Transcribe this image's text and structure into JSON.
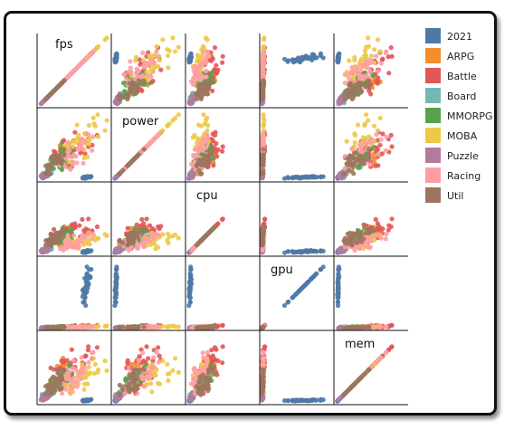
{
  "chart_data": {
    "type": "scatter",
    "subtype": "scatter-matrix",
    "variables": [
      "fps",
      "power",
      "cpu",
      "gpu",
      "mem"
    ],
    "legend_position": "right",
    "grid": false,
    "categories": [
      {
        "name": "2021",
        "color": "#4e79a7"
      },
      {
        "name": "ARPG",
        "color": "#f28e2b"
      },
      {
        "name": "Battle",
        "color": "#e15759"
      },
      {
        "name": "Board",
        "color": "#76b7b2"
      },
      {
        "name": "MMORPG",
        "color": "#59a14f"
      },
      {
        "name": "MOBA",
        "color": "#edc948"
      },
      {
        "name": "Puzzle",
        "color": "#b07aa1"
      },
      {
        "name": "Racing",
        "color": "#ff9da7"
      },
      {
        "name": "Util",
        "color": "#9c755f"
      }
    ],
    "distributions": {
      "2021": {
        "fps": [
          0.6,
          0.75
        ],
        "power": [
          0.02,
          0.06
        ],
        "cpu": [
          0.02,
          0.06
        ],
        "gpu": [
          0.25,
          0.95
        ],
        "mem": [
          0.02,
          0.05
        ]
      },
      "ARPG": {
        "fps": [
          0.05,
          0.55
        ],
        "power": [
          0.05,
          0.55
        ],
        "cpu": [
          0.05,
          0.45
        ],
        "gpu": [
          0.0,
          0.04
        ],
        "mem": [
          0.05,
          0.7
        ]
      },
      "Battle": {
        "fps": [
          0.1,
          0.85
        ],
        "power": [
          0.1,
          0.75
        ],
        "cpu": [
          0.1,
          0.55
        ],
        "gpu": [
          0.0,
          0.05
        ],
        "mem": [
          0.1,
          0.95
        ]
      },
      "Board": {
        "fps": [
          0.02,
          0.2
        ],
        "power": [
          0.02,
          0.15
        ],
        "cpu": [
          0.02,
          0.12
        ],
        "gpu": [
          0.0,
          0.03
        ],
        "mem": [
          0.02,
          0.2
        ]
      },
      "MMORPG": {
        "fps": [
          0.05,
          0.6
        ],
        "power": [
          0.05,
          0.55
        ],
        "cpu": [
          0.05,
          0.4
        ],
        "gpu": [
          0.0,
          0.04
        ],
        "mem": [
          0.05,
          0.6
        ]
      },
      "MOBA": {
        "fps": [
          0.3,
          1.0
        ],
        "power": [
          0.2,
          0.95
        ],
        "cpu": [
          0.05,
          0.35
        ],
        "gpu": [
          0.0,
          0.04
        ],
        "mem": [
          0.1,
          0.7
        ]
      },
      "Puzzle": {
        "fps": [
          0.02,
          0.15
        ],
        "power": [
          0.02,
          0.12
        ],
        "cpu": [
          0.02,
          0.1
        ],
        "gpu": [
          0.0,
          0.03
        ],
        "mem": [
          0.02,
          0.15
        ]
      },
      "Racing": {
        "fps": [
          0.2,
          0.9
        ],
        "power": [
          0.1,
          0.7
        ],
        "cpu": [
          0.05,
          0.35
        ],
        "gpu": [
          0.0,
          0.04
        ],
        "mem": [
          0.1,
          0.8
        ]
      },
      "Util": {
        "fps": [
          0.05,
          0.4
        ],
        "power": [
          0.05,
          0.45
        ],
        "cpu": [
          0.05,
          0.4
        ],
        "gpu": [
          0.0,
          0.03
        ],
        "mem": [
          0.05,
          0.5
        ]
      }
    }
  }
}
